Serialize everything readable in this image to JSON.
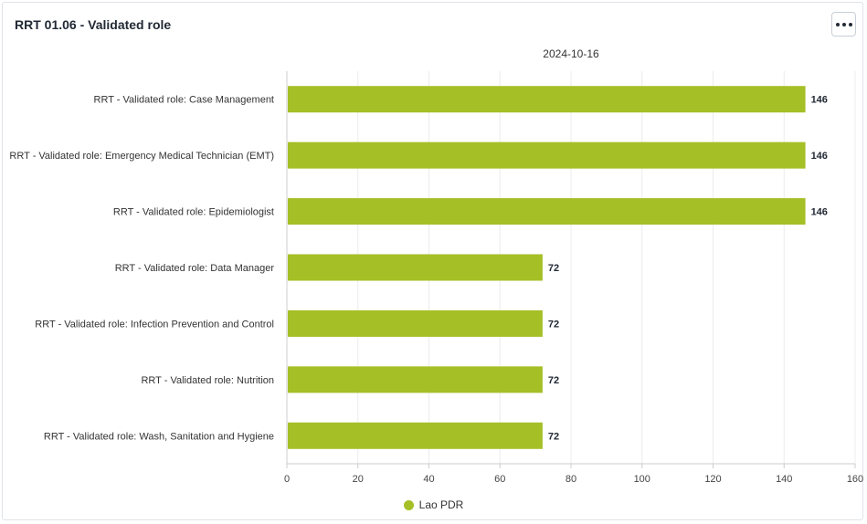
{
  "widget": {
    "title": "RRT 01.06 - Validated role",
    "menu_icon": "more-horizontal-icon"
  },
  "chart_data": {
    "type": "bar",
    "orientation": "horizontal",
    "subtitle": "2024-10-16",
    "categories": [
      "RRT - Validated role: Case Management",
      "RRT - Validated role: Emergency Medical Technician (EMT)",
      "RRT - Validated role: Epidemiologist",
      "RRT - Validated role: Data Manager",
      "RRT - Validated role: Infection Prevention and Control",
      "RRT - Validated role: Nutrition",
      "RRT - Validated role: Wash, Sanitation and Hygiene"
    ],
    "series": [
      {
        "name": "Lao PDR",
        "values": [
          146,
          146,
          146,
          72,
          72,
          72,
          72
        ],
        "color": "#a5bf26"
      }
    ],
    "xlim": [
      0,
      160
    ],
    "xticks": [
      0,
      20,
      40,
      60,
      80,
      100,
      120,
      140,
      160
    ],
    "grid": true,
    "legend": "bottom-center",
    "data_labels": true
  }
}
